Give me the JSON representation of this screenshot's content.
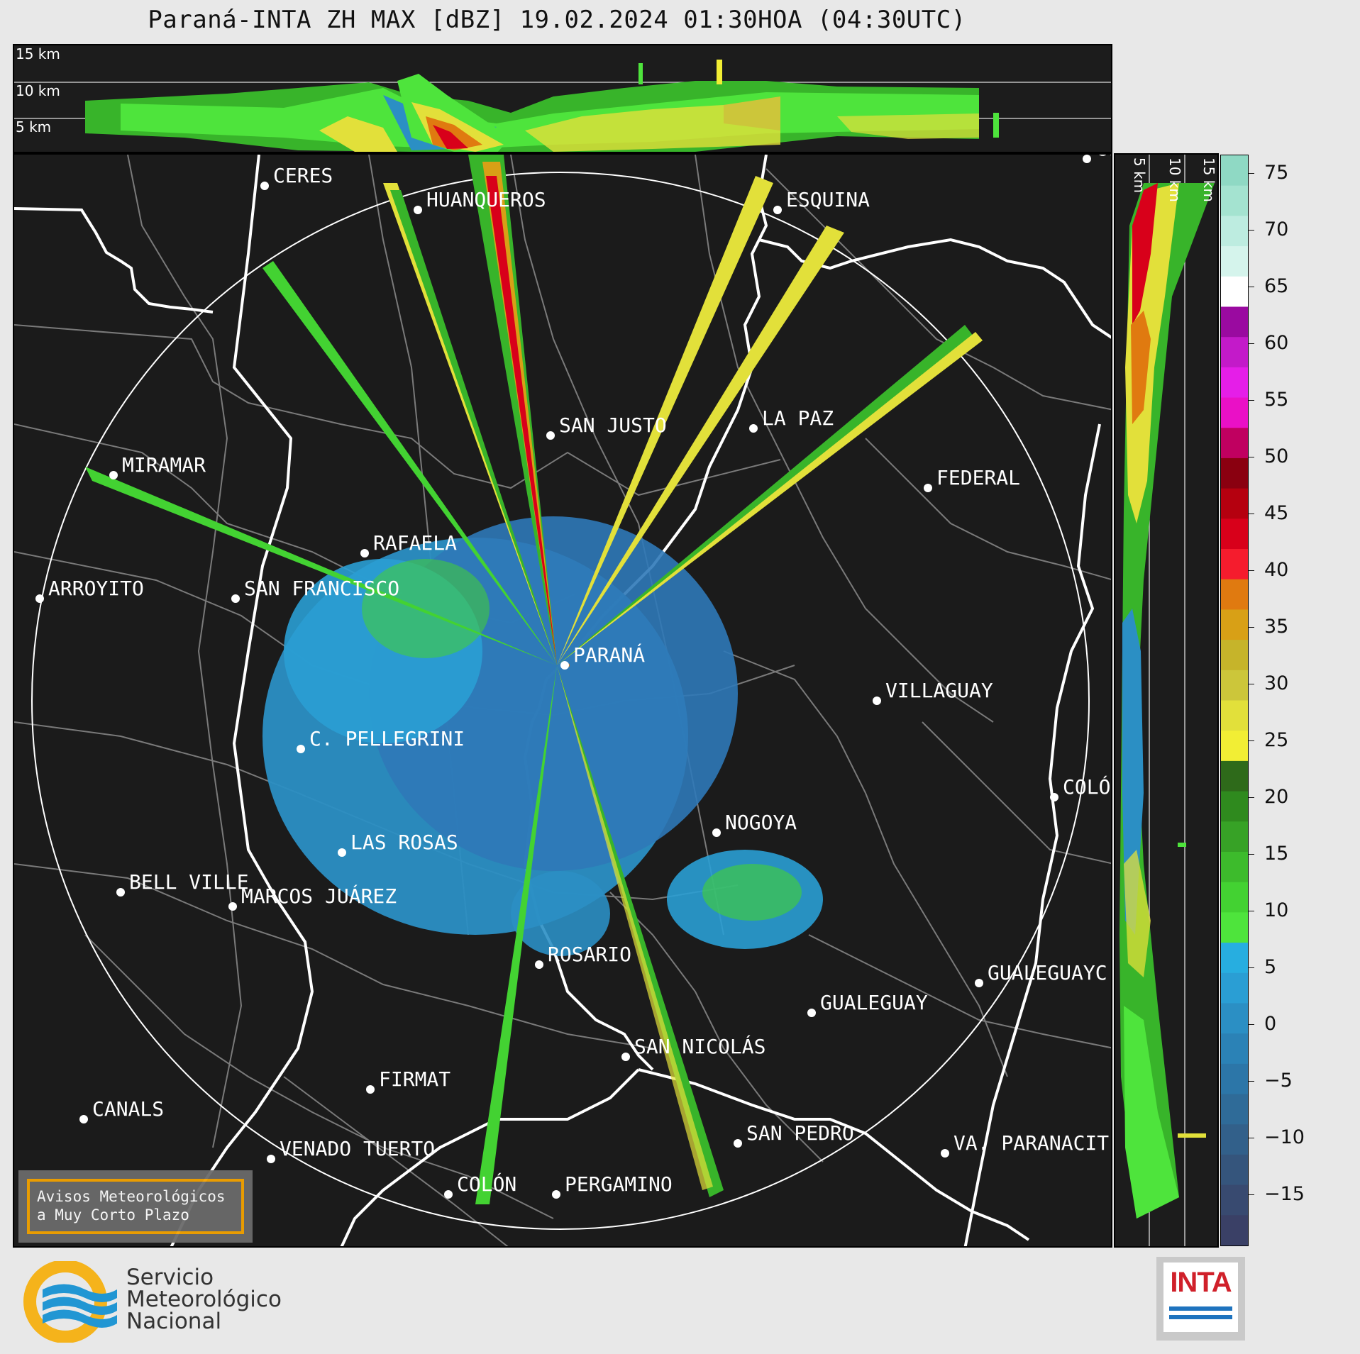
{
  "title": "Paraná-INTA ZH MAX [dBZ] 19.02.2024 01:30HOA (04:30UTC)",
  "top_panel": {
    "altitudes": [
      "15 km",
      "10 km",
      "5 km"
    ]
  },
  "side_panel": {
    "altitudes": [
      "5 km",
      "10 km",
      "15 km"
    ]
  },
  "colorbar": {
    "ticks": [
      "75",
      "70",
      "65",
      "60",
      "55",
      "50",
      "45",
      "40",
      "35",
      "30",
      "25",
      "20",
      "15",
      "10",
      "5",
      "0",
      "−5",
      "−10",
      "−15"
    ],
    "colors": [
      "#8fd9c4",
      "#a4e3d0",
      "#bdece0",
      "#d5f4ec",
      "#ffffff",
      "#9a0aa0",
      "#c31ac9",
      "#e51ee8",
      "#ea10c6",
      "#c00060",
      "#8a0010",
      "#b5000f",
      "#d8001a",
      "#f51c2d",
      "#e07a10",
      "#d8a016",
      "#c6b42a",
      "#ccc63a",
      "#e2e03a",
      "#f2ee34",
      "#2e6a1a",
      "#2f8a1e",
      "#37a226",
      "#3dbb2c",
      "#43d232",
      "#4ee43c",
      "#27aee0",
      "#2a9ed4",
      "#2b8fc4",
      "#2b82b6",
      "#2c76a8",
      "#2f6b98",
      "#32608a",
      "#35557c",
      "#384a70",
      "#3a4066"
    ]
  },
  "cities": [
    {
      "name": "CERES"
    },
    {
      "name": "HUANQUEROS"
    },
    {
      "name": "ESQUINA"
    },
    {
      "name": "CU"
    },
    {
      "name": "SAN JUSTO"
    },
    {
      "name": "LA PAZ"
    },
    {
      "name": "MIRAMAR"
    },
    {
      "name": "FEDERAL"
    },
    {
      "name": "RAFAELA"
    },
    {
      "name": "ARROYITO"
    },
    {
      "name": "SAN FRANCISCO"
    },
    {
      "name": "PARANÁ"
    },
    {
      "name": "VILLAGUAY"
    },
    {
      "name": "C. PELLEGRINI"
    },
    {
      "name": "COLÓ"
    },
    {
      "name": "NOGOYA"
    },
    {
      "name": "LAS ROSAS"
    },
    {
      "name": "BELL VILLE"
    },
    {
      "name": "MARCOS JUÁREZ"
    },
    {
      "name": "ROSARIO"
    },
    {
      "name": "GUALEGUAYC"
    },
    {
      "name": "GUALEGUAY"
    },
    {
      "name": "SAN NICOLÁS"
    },
    {
      "name": "FIRMAT"
    },
    {
      "name": "CANALS"
    },
    {
      "name": "SAN PEDRO"
    },
    {
      "name": "VENADO TUERTO"
    },
    {
      "name": "VA. PARANACIT"
    },
    {
      "name": "COLÓN"
    },
    {
      "name": "PERGAMINO"
    }
  ],
  "aviso": {
    "line1": "Avisos Meteorológicos",
    "line2": "a Muy Corto Plazo"
  },
  "smn": {
    "line1": "Servicio",
    "line2": "Meteorológico",
    "line3": "Nacional"
  },
  "inta": {
    "text": "INTA"
  }
}
